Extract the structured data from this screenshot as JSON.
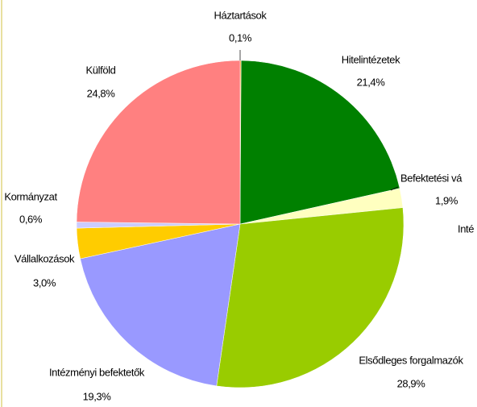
{
  "chart_data": {
    "type": "pie",
    "categories": [
      "Háztartások",
      "Hitelintézetek",
      "Befektetési vá",
      "Elsődleges forgalmazók",
      "Intézményi befektetők",
      "Vállalkozások",
      "Kormányzat",
      "Külföld"
    ],
    "values": [
      0.1,
      21.4,
      1.9,
      28.9,
      19.3,
      3.0,
      0.6,
      24.8
    ],
    "value_labels": [
      "0,1%",
      "21,4%",
      "1,9%",
      "28,9%",
      "19,3%",
      "3,0%",
      "0,6%",
      "24,8%"
    ],
    "colors": [
      "#ff9900",
      "#008000",
      "#ffffc0",
      "#99cc00",
      "#9999ff",
      "#ffcc00",
      "#ccccff",
      "#ff8080"
    ],
    "annotations": [
      "Inté"
    ]
  }
}
